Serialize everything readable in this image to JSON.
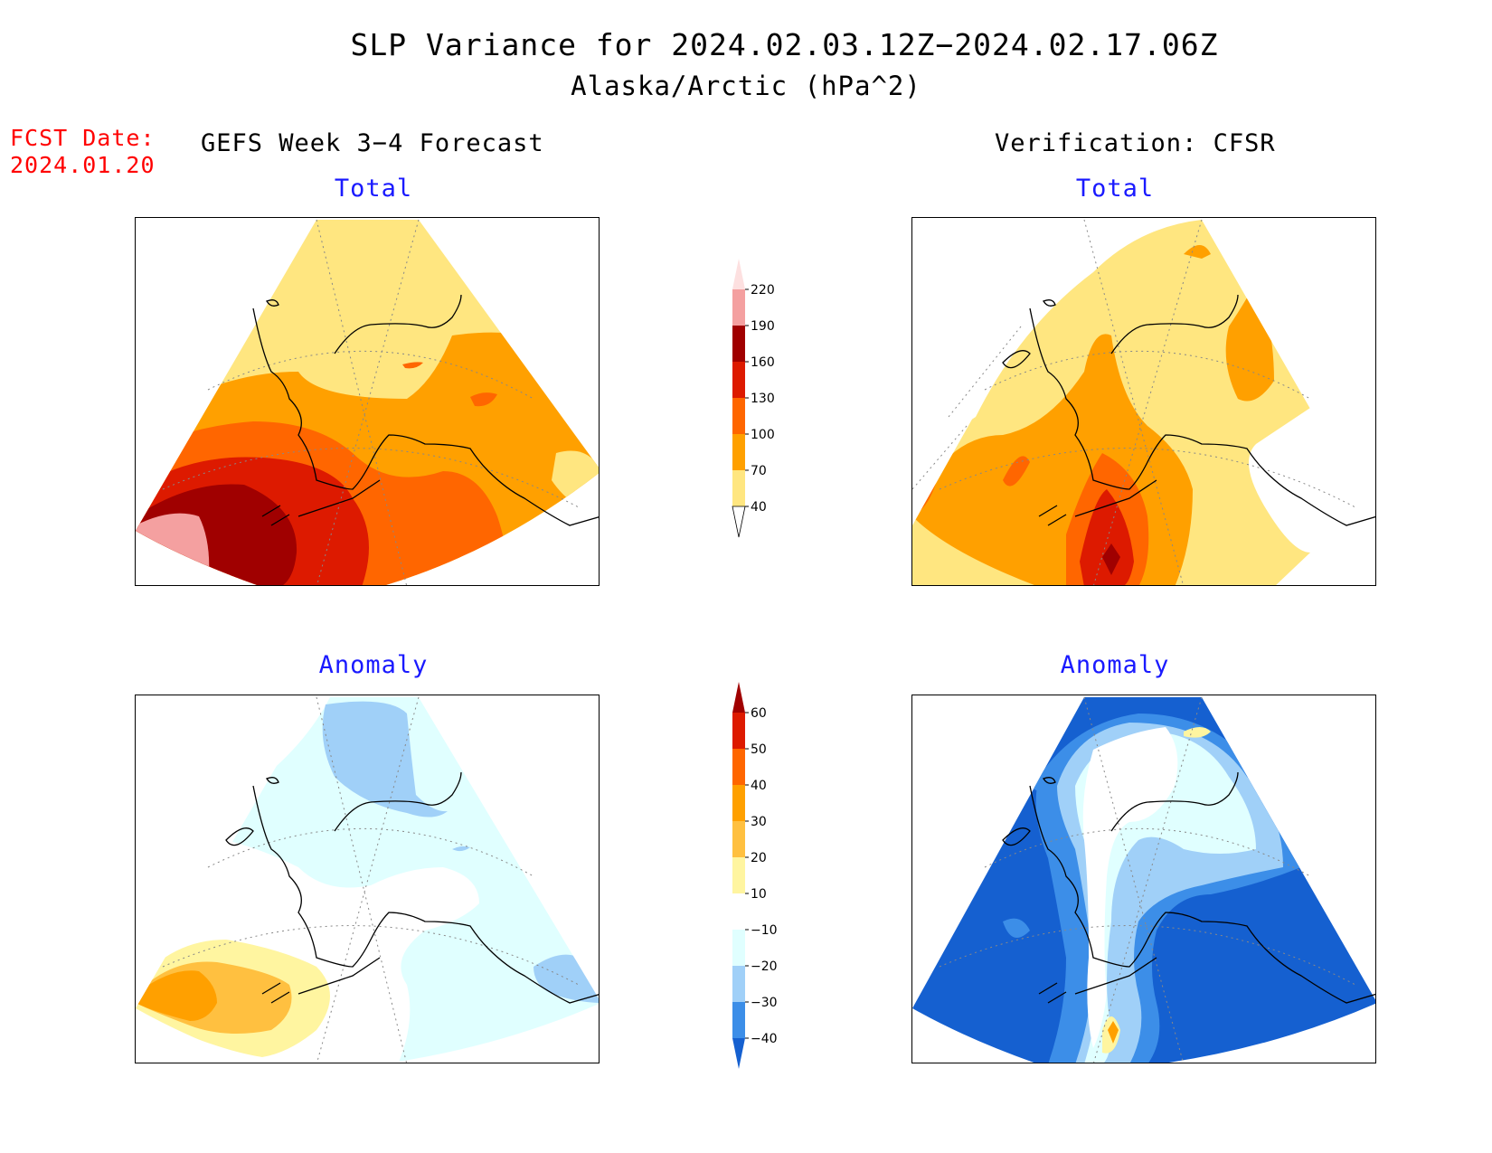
{
  "header": {
    "title": "SLP Variance for 2024.02.03.12Z−2024.02.17.06Z",
    "subtitle": "Alaska/Arctic (hPa^2)"
  },
  "forecast": {
    "label": "FCST Date:",
    "value": "2024.01.20"
  },
  "columns": {
    "left": "GEFS Week 3−4 Forecast",
    "right": "Verification: CFSR"
  },
  "panels": {
    "top_left": "Total",
    "top_right": "Total",
    "bottom_left": "Anomaly",
    "bottom_right": "Anomaly"
  },
  "colorbars": {
    "total": {
      "labels": [
        "220",
        "190",
        "160",
        "130",
        "100",
        "70",
        "40"
      ],
      "colors": [
        "#fde0e0",
        "#f4a0a0",
        "#a00000",
        "#dd1a00",
        "#ff6600",
        "#ffa000",
        "#ffe680"
      ]
    },
    "anomaly": {
      "labels": [
        "60",
        "50",
        "40",
        "30",
        "20",
        "10",
        "−10",
        "−20",
        "−30",
        "−40"
      ],
      "colors": [
        "#a00000",
        "#dd1a00",
        "#ff6600",
        "#ffa000",
        "#ffc040",
        "#fff5a0",
        "#ffffff",
        "#e0ffff",
        "#a0d0f8",
        "#3c8ee8",
        "#1560d0"
      ]
    }
  },
  "fill_colors": {
    "t1": "#ffe680",
    "t2": "#ffa000",
    "t3": "#ff6600",
    "t4": "#dd1a00",
    "t5": "#a00000",
    "t6": "#f4a0a0",
    "a_pos1": "#fff5a0",
    "a_pos2": "#ffc040",
    "a_pos3": "#ffa000",
    "a_neg1": "#e0ffff",
    "a_neg2": "#a0d0f8",
    "a_neg3": "#3c8ee8",
    "a_neg4": "#1560d0"
  }
}
